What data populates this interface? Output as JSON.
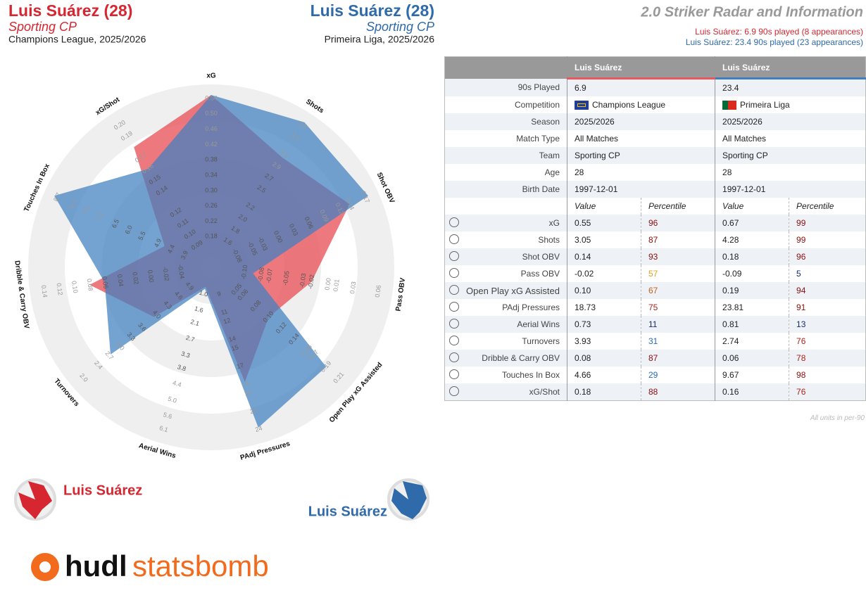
{
  "players": [
    {
      "name": "Luis Suárez (28)",
      "team": "Sporting CP",
      "competition": "Champions League, 2025/2026"
    },
    {
      "name": "Luis Suárez (28)",
      "team": "Sporting CP",
      "competition": "Primeira Liga, 2025/2026"
    }
  ],
  "title": "2.0 Striker Radar and Information",
  "subtitles": [
    "Luis Suárez: 6.9 90s played (8 appearances)",
    "Luis Suárez: 23.4 90s played (23 appearances)"
  ],
  "chart_data": {
    "type": "radar",
    "categories": [
      "xG",
      "Shots",
      "Shot OBV",
      "Pass OBV",
      "Open Play xG Assisted",
      "PAdj Pressures",
      "Aerial Wins",
      "Turnovers",
      "Dribble & Carry OBV",
      "Touches In Box",
      "xG/Shot"
    ],
    "series": [
      {
        "name": "Luis Suárez",
        "color": "#e8585e",
        "values": [
          0.55,
          3.05,
          0.14,
          -0.02,
          0.1,
          18.73,
          0.73,
          3.93,
          0.08,
          4.66,
          0.18
        ],
        "value_labels": [
          "0.55",
          "3.05",
          "0.14",
          "-0.02",
          "0.10",
          "18.73",
          "0.73",
          "3.93",
          "0.08",
          "4.66",
          "0.18"
        ]
      },
      {
        "name": "Luis Suárez",
        "color": "#3f7fc0",
        "values": [
          0.67,
          4.28,
          0.18,
          -0.09,
          0.19,
          23.81,
          0.81,
          2.74,
          0.06,
          9.67,
          0.16
        ],
        "value_labels": [
          "0.67",
          "4.28",
          "0.18",
          "-0.09",
          "0.19",
          "23.81",
          "0.81",
          "2.74",
          "0.06",
          "9.67",
          "0.16"
        ]
      }
    ],
    "axes": [
      {
        "lim": [
          0.1,
          0.54
        ],
        "ticks": [
          0.18,
          0.22,
          0.26,
          {
            "value": 0.3,
            "label": "0.30"
          },
          0.34,
          0.38,
          0.42,
          0.46,
          {
            "value": 0.5,
            "label": "0.50"
          },
          0.54
        ]
      },
      {
        "lim": [
          1.16,
          3.6
        ],
        "ticks": [
          1.6,
          1.8,
          {
            "value": 2,
            "label": "2.0"
          },
          2.2,
          2.5,
          2.7,
          2.9,
          3.1,
          3.4,
          3.6
        ]
      },
      {
        "lim": [
          -0.13,
          0.17
        ],
        "ticks": [
          -0.08,
          -0.05,
          -0.03,
          {
            "value": 0,
            "label": "0.00"
          },
          0.03,
          0.06,
          0.09,
          0.12,
          0.14,
          0.17
        ]
      },
      {
        "lim": [
          -0.14,
          0.06
        ],
        "ticks": [
          {
            "value": -0.1,
            "label": "-0.10"
          },
          -0.08,
          -0.07,
          -0.05,
          -0.03,
          -0.02,
          {
            "value": 0,
            "label": "0.00"
          },
          0.01,
          0.03,
          0.06
        ]
      },
      {
        "lim": [
          0.01,
          0.21
        ],
        "ticks": [
          0.05,
          0.06,
          0.08,
          {
            "value": 0.1,
            "label": "0.10"
          },
          0.12,
          0.14,
          0.16,
          0.17,
          0.19,
          0.21
        ]
      },
      {
        "lim": [
          6,
          24
        ],
        "ticks": [
          9,
          11,
          12,
          14,
          15,
          17,
          19,
          20,
          22,
          24
        ]
      },
      {
        "lim": [
          0,
          6.1
        ],
        "ticks": [
          {
            "value": 1,
            "label": "1.0"
          },
          1.6,
          2.1,
          2.7,
          3.3,
          3.8,
          4.4,
          {
            "value": 5,
            "label": "5.0"
          },
          5.6,
          6.1
        ]
      },
      {
        "lim": [
          5.5,
          2
        ],
        "ticks": [
          4.9,
          4.6,
          4.3,
          {
            "value": 4,
            "label": "4.0"
          },
          3.6,
          3.3,
          {
            "value": 3,
            "label": "3.0"
          },
          2.7,
          2.4,
          {
            "value": 2,
            "label": "2.0"
          }
        ]
      },
      {
        "lim": [
          -0.08,
          0.14
        ],
        "ticks": [
          -0.04,
          -0.02,
          {
            "value": 0,
            "label": "0.00"
          },
          0.02,
          0.04,
          0.06,
          0.08,
          {
            "value": 0.1,
            "label": "0.10"
          },
          0.12,
          0.14
        ]
      },
      {
        "lim": [
          2.9,
          8.7
        ],
        "ticks": [
          3.9,
          4.4,
          4.9,
          5.5,
          {
            "value": 6,
            "label": "6.0"
          },
          6.5,
          7.1,
          7.6,
          8.1,
          8.7
        ]
      },
      {
        "lim": [
          0.07,
          0.2
        ],
        "ticks": [
          0.09,
          {
            "value": 0.1,
            "label": "0.10"
          },
          0.11,
          0.12,
          0.14,
          0.15,
          0.16,
          0.17,
          0.19,
          {
            "value": 0.2,
            "label": "0.20"
          }
        ]
      }
    ]
  },
  "table": {
    "info_rows": [
      [
        "90s Played",
        "6.9",
        "23.4"
      ],
      [
        "Competition",
        "Champions League",
        "Primeira Liga"
      ],
      [
        "Season",
        "2025/2026",
        "2025/2026"
      ],
      [
        "Match Type",
        "All Matches",
        "All Matches"
      ],
      [
        "Team",
        "Sporting CP",
        "Sporting CP"
      ],
      [
        "Age",
        "28",
        "28"
      ],
      [
        "Birth Date",
        "1997-12-01",
        "1997-12-01"
      ]
    ],
    "stat_headers": [
      "Value",
      "Percentile"
    ],
    "percentiles": [
      [
        96,
        99
      ],
      [
        87,
        99
      ],
      [
        93,
        96
      ],
      [
        57,
        5
      ],
      [
        67,
        94
      ],
      [
        75,
        91
      ],
      [
        11,
        13
      ],
      [
        31,
        76
      ],
      [
        87,
        78
      ],
      [
        29,
        98
      ],
      [
        88,
        76
      ]
    ]
  },
  "footnote": "All units in per-90",
  "logo": {
    "brand": "hudl",
    "product": "statsbomb"
  }
}
